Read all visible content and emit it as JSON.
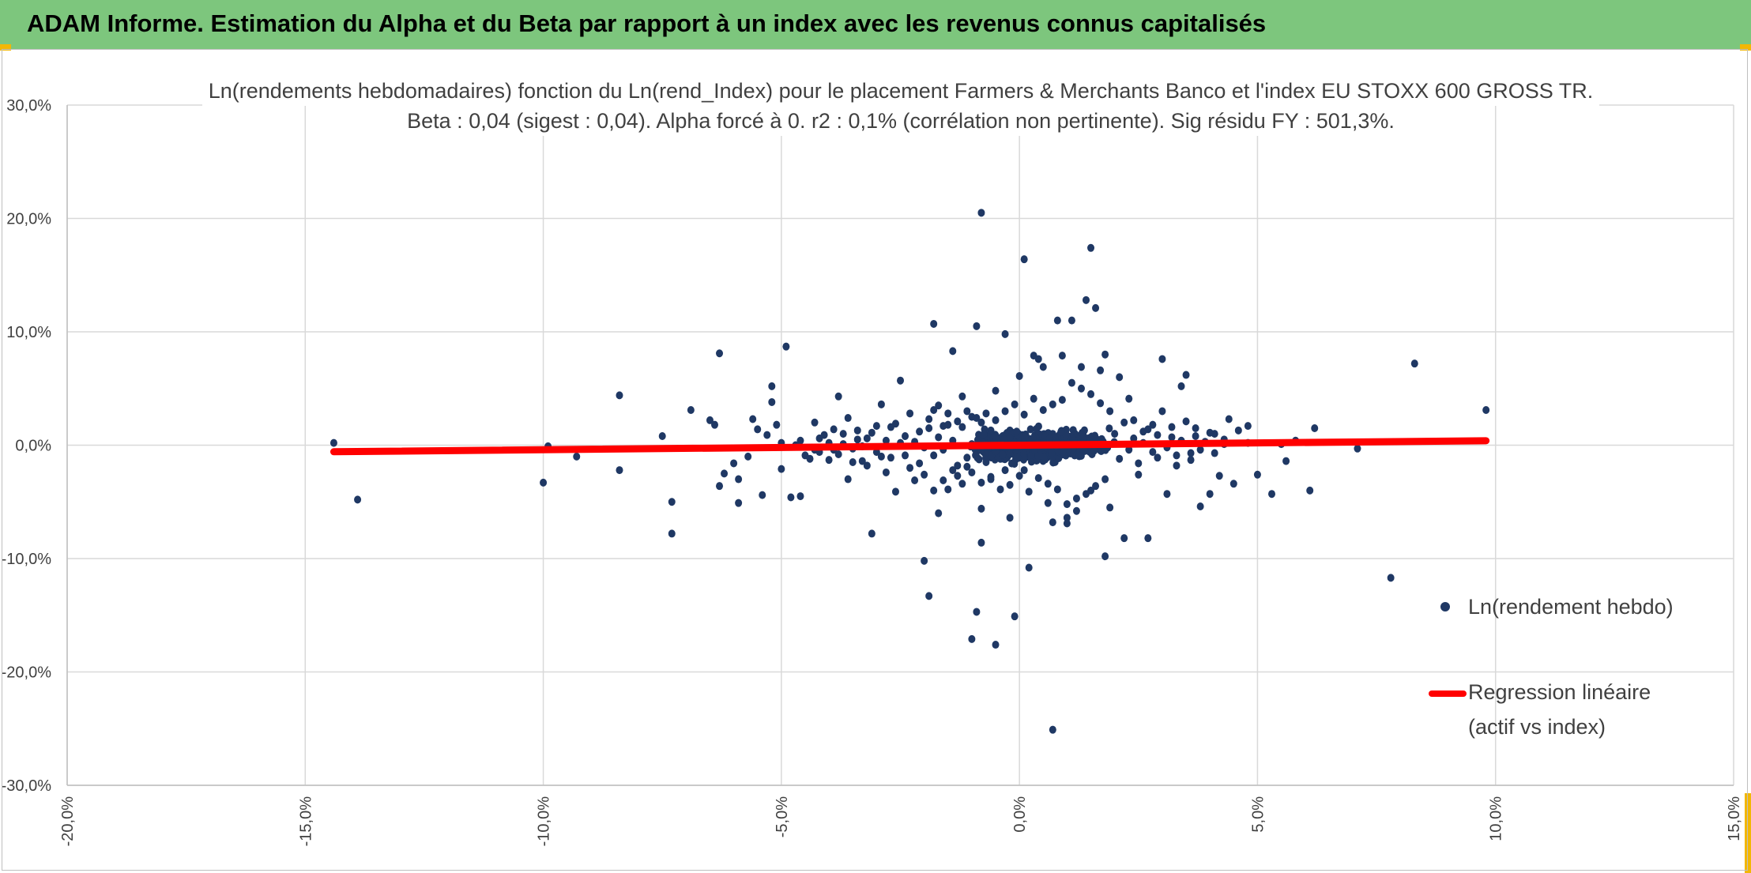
{
  "header": {
    "title": "ADAM Informe. Estimation du Alpha et du Beta par rapport à un index avec les revenus connus capitalisés"
  },
  "colors": {
    "banner": "#7dc67d",
    "points": "#1f3864",
    "regression": "#ff0000",
    "grid": "#d9d9d9",
    "corner_accent": "#f2b705"
  },
  "chart_data": {
    "type": "scatter",
    "title_line1": "Ln(rendements hebdomadaires) fonction du Ln(rend_Index) pour le placement Farmers & Merchants Banco et l'index EU STOXX 600 GROSS TR.",
    "title_line2": "Beta : 0,04 (sigest : 0,04).  Alpha forcé à 0. r2 : 0,1% (corrélation non pertinente). Sig résidu FY : 501,3%.",
    "xlim": [
      -0.2,
      0.15
    ],
    "ylim": [
      -0.3,
      0.3
    ],
    "x_ticks": [
      -0.2,
      -0.15,
      -0.1,
      -0.05,
      0.0,
      0.05,
      0.1,
      0.15
    ],
    "y_ticks": [
      -0.3,
      -0.2,
      -0.1,
      0.0,
      0.1,
      0.2,
      0.3
    ],
    "x_tick_labels": [
      "-20,0%",
      "-15,0%",
      "-10,0%",
      "-5,0%",
      "0,0%",
      "5,0%",
      "10,0%",
      "15,0%"
    ],
    "y_tick_labels": [
      "-30,0%",
      "-20,0%",
      "-10,0%",
      "0,0%",
      "10,0%",
      "20,0%",
      "30,0%"
    ],
    "grid": true,
    "legend_position": "right",
    "series": [
      {
        "name": "Ln(rendement hebdo)",
        "type": "scatter",
        "points": [
          [
            -0.144,
            0.002
          ],
          [
            -0.139,
            -0.048
          ],
          [
            -0.1,
            -0.033
          ],
          [
            -0.099,
            -0.001
          ],
          [
            -0.093,
            -0.01
          ],
          [
            -0.084,
            0.044
          ],
          [
            -0.084,
            -0.022
          ],
          [
            -0.075,
            0.008
          ],
          [
            -0.073,
            -0.05
          ],
          [
            -0.073,
            -0.078
          ],
          [
            -0.069,
            0.031
          ],
          [
            -0.065,
            0.022
          ],
          [
            -0.064,
            0.018
          ],
          [
            -0.063,
            0.081
          ],
          [
            -0.063,
            -0.036
          ],
          [
            -0.062,
            -0.025
          ],
          [
            -0.06,
            -0.016
          ],
          [
            -0.059,
            -0.03
          ],
          [
            -0.059,
            -0.051
          ],
          [
            -0.057,
            -0.01
          ],
          [
            -0.056,
            0.023
          ],
          [
            -0.055,
            0.014
          ],
          [
            -0.054,
            -0.044
          ],
          [
            -0.053,
            0.009
          ],
          [
            -0.052,
            0.052
          ],
          [
            -0.052,
            0.038
          ],
          [
            -0.051,
            0.018
          ],
          [
            -0.05,
            -0.021
          ],
          [
            -0.05,
            0.002
          ],
          [
            -0.048,
            -0.046
          ],
          [
            -0.047,
            0.0
          ],
          [
            -0.046,
            -0.045
          ],
          [
            -0.049,
            0.087
          ],
          [
            -0.046,
            0.004
          ],
          [
            -0.045,
            -0.009
          ],
          [
            -0.044,
            -0.012
          ],
          [
            -0.043,
            0.02
          ],
          [
            -0.042,
            -0.006
          ],
          [
            -0.041,
            0.009
          ],
          [
            -0.04,
            -0.013
          ],
          [
            -0.039,
            -0.004
          ],
          [
            -0.038,
            0.043
          ],
          [
            -0.037,
            0.01
          ],
          [
            -0.036,
            -0.03
          ],
          [
            -0.036,
            0.024
          ],
          [
            -0.035,
            -0.015
          ],
          [
            -0.034,
            0.005
          ],
          [
            -0.033,
            -0.001
          ],
          [
            -0.032,
            -0.018
          ],
          [
            -0.031,
            -0.078
          ],
          [
            -0.031,
            0.011
          ],
          [
            -0.03,
            -0.006
          ],
          [
            -0.029,
            0.036
          ],
          [
            -0.028,
            -0.024
          ],
          [
            -0.027,
            0.016
          ],
          [
            -0.026,
            -0.041
          ],
          [
            -0.025,
            0.002
          ],
          [
            -0.025,
            0.057
          ],
          [
            -0.024,
            -0.009
          ],
          [
            -0.023,
            0.028
          ],
          [
            -0.022,
            -0.031
          ],
          [
            -0.021,
            0.012
          ],
          [
            -0.02,
            -0.002
          ],
          [
            -0.02,
            -0.102
          ],
          [
            -0.019,
            -0.133
          ],
          [
            -0.018,
            0.107
          ],
          [
            -0.018,
            0.031
          ],
          [
            -0.017,
            -0.06
          ],
          [
            -0.016,
            0.017
          ],
          [
            -0.015,
            -0.039
          ],
          [
            -0.014,
            0.004
          ],
          [
            -0.014,
            0.083
          ],
          [
            -0.013,
            -0.018
          ],
          [
            -0.012,
            0.043
          ],
          [
            -0.011,
            -0.011
          ],
          [
            -0.01,
            0.025
          ],
          [
            -0.009,
            -0.147
          ],
          [
            -0.009,
            0.105
          ],
          [
            -0.008,
            -0.086
          ],
          [
            -0.008,
            -0.056
          ],
          [
            -0.007,
            0.009
          ],
          [
            -0.006,
            -0.03
          ],
          [
            -0.005,
            0.048
          ],
          [
            -0.004,
            -0.012
          ],
          [
            -0.003,
            0.098
          ],
          [
            -0.002,
            -0.064
          ],
          [
            -0.001,
            0.003
          ],
          [
            0.0,
            0.061
          ],
          [
            0.001,
            -0.022
          ],
          [
            0.002,
            -0.108
          ],
          [
            -0.002,
            0.013
          ],
          [
            -0.003,
            -0.022
          ],
          [
            -0.004,
            0.006
          ],
          [
            -0.006,
            0.013
          ],
          [
            -0.007,
            -0.015
          ],
          [
            -0.008,
            0.02
          ],
          [
            -0.009,
            -0.006
          ],
          [
            -0.01,
            0.001
          ],
          [
            -0.011,
            -0.019
          ],
          [
            -0.012,
            0.016
          ],
          [
            -0.013,
            -0.027
          ],
          [
            -0.015,
            0.018
          ],
          [
            -0.016,
            -0.004
          ],
          [
            -0.017,
            0.007
          ],
          [
            -0.018,
            -0.009
          ],
          [
            -0.019,
            0.015
          ],
          [
            -0.021,
            -0.016
          ],
          [
            -0.022,
            0.003
          ],
          [
            -0.023,
            -0.02
          ],
          [
            -0.024,
            0.008
          ],
          [
            -0.026,
            0.019
          ],
          [
            -0.027,
            -0.011
          ],
          [
            -0.028,
            0.004
          ],
          [
            -0.029,
            -0.01
          ],
          [
            -0.03,
            0.017
          ],
          [
            -0.032,
            0.006
          ],
          [
            -0.033,
            -0.014
          ],
          [
            -0.034,
            0.013
          ],
          [
            -0.035,
            -0.003
          ],
          [
            -0.037,
            0.001
          ],
          [
            -0.038,
            -0.008
          ],
          [
            -0.039,
            0.014
          ],
          [
            -0.04,
            0.002
          ],
          [
            -0.042,
            0.006
          ],
          [
            -0.043,
            -0.004
          ],
          [
            -0.008,
            0.205
          ],
          [
            -0.01,
            -0.171
          ],
          [
            -0.005,
            -0.176
          ],
          [
            0.001,
            0.164
          ],
          [
            -0.001,
            -0.151
          ],
          [
            0.007,
            -0.251
          ],
          [
            0.008,
            0.11
          ],
          [
            0.011,
            0.11
          ],
          [
            0.014,
            0.128
          ],
          [
            0.015,
            0.174
          ],
          [
            0.016,
            0.121
          ],
          [
            0.018,
            -0.098
          ],
          [
            0.018,
            0.08
          ],
          [
            0.017,
            0.066
          ],
          [
            0.013,
            0.069
          ],
          [
            0.009,
            0.079
          ],
          [
            0.005,
            0.069
          ],
          [
            0.003,
            0.079
          ],
          [
            0.004,
            0.076
          ],
          [
            0.006,
            -0.051
          ],
          [
            0.007,
            -0.068
          ],
          [
            0.01,
            -0.064
          ],
          [
            0.01,
            -0.069
          ],
          [
            0.012,
            -0.058
          ],
          [
            0.015,
            -0.04
          ],
          [
            0.019,
            -0.055
          ],
          [
            0.021,
            0.06
          ],
          [
            0.022,
            -0.082
          ],
          [
            0.023,
            0.041
          ],
          [
            0.024,
            0.022
          ],
          [
            0.025,
            -0.026
          ],
          [
            0.026,
            0.012
          ],
          [
            0.027,
            -0.082
          ],
          [
            0.028,
            0.018
          ],
          [
            0.029,
            -0.011
          ],
          [
            0.03,
            0.076
          ],
          [
            0.03,
            0.03
          ],
          [
            0.031,
            -0.043
          ],
          [
            0.032,
            0.007
          ],
          [
            0.033,
            -0.018
          ],
          [
            0.034,
            0.052
          ],
          [
            0.035,
            0.021
          ],
          [
            0.035,
            0.062
          ],
          [
            0.036,
            -0.007
          ],
          [
            0.037,
            0.015
          ],
          [
            0.038,
            -0.054
          ],
          [
            0.039,
            0.003
          ],
          [
            0.04,
            -0.043
          ],
          [
            0.041,
            0.01
          ],
          [
            0.042,
            -0.027
          ],
          [
            0.043,
            0.005
          ],
          [
            0.044,
            0.023
          ],
          [
            0.045,
            -0.034
          ],
          [
            0.046,
            0.013
          ],
          [
            0.048,
            0.002
          ],
          [
            0.048,
            0.017
          ],
          [
            0.05,
            -0.026
          ],
          [
            0.053,
            -0.043
          ],
          [
            0.055,
            0.001
          ],
          [
            0.056,
            -0.014
          ],
          [
            0.058,
            0.004
          ],
          [
            0.061,
            -0.04
          ],
          [
            0.062,
            0.015
          ],
          [
            0.071,
            -0.003
          ],
          [
            0.078,
            -0.117
          ],
          [
            0.083,
            0.072
          ],
          [
            0.098,
            0.031
          ],
          [
            0.02,
            0.01
          ],
          [
            0.021,
            -0.012
          ],
          [
            0.022,
            0.02
          ],
          [
            0.023,
            -0.004
          ],
          [
            0.024,
            0.006
          ],
          [
            0.025,
            -0.016
          ],
          [
            0.026,
            0.002
          ],
          [
            0.027,
            0.014
          ],
          [
            0.028,
            -0.006
          ],
          [
            0.029,
            0.009
          ],
          [
            0.031,
            -0.002
          ],
          [
            0.032,
            0.016
          ],
          [
            0.033,
            -0.009
          ],
          [
            0.034,
            0.004
          ],
          [
            0.036,
            -0.013
          ],
          [
            0.037,
            0.008
          ],
          [
            0.038,
            -0.004
          ],
          [
            0.04,
            0.011
          ],
          [
            0.041,
            -0.007
          ],
          [
            0.043,
            0.001
          ],
          [
            0.019,
            0.03
          ],
          [
            0.018,
            -0.03
          ],
          [
            0.017,
            0.037
          ],
          [
            0.016,
            -0.036
          ],
          [
            0.015,
            0.045
          ],
          [
            0.014,
            -0.043
          ],
          [
            0.013,
            0.05
          ],
          [
            0.012,
            -0.047
          ],
          [
            0.011,
            0.055
          ],
          [
            0.01,
            -0.052
          ],
          [
            0.009,
            0.04
          ],
          [
            0.008,
            -0.039
          ],
          [
            0.007,
            0.036
          ],
          [
            0.006,
            -0.034
          ],
          [
            0.005,
            0.031
          ],
          [
            0.004,
            -0.029
          ],
          [
            0.003,
            0.041
          ],
          [
            0.002,
            -0.041
          ],
          [
            0.001,
            0.027
          ],
          [
            0.0,
            -0.027
          ],
          [
            -0.001,
            0.036
          ],
          [
            -0.002,
            -0.035
          ],
          [
            -0.003,
            0.03
          ],
          [
            -0.004,
            -0.039
          ],
          [
            -0.005,
            0.022
          ],
          [
            -0.006,
            -0.028
          ],
          [
            -0.007,
            0.028
          ],
          [
            -0.008,
            -0.033
          ],
          [
            -0.009,
            0.024
          ],
          [
            -0.01,
            -0.024
          ],
          [
            -0.011,
            0.03
          ],
          [
            -0.012,
            -0.034
          ],
          [
            -0.013,
            0.021
          ],
          [
            -0.014,
            -0.022
          ],
          [
            -0.015,
            0.028
          ],
          [
            -0.016,
            -0.031
          ],
          [
            -0.017,
            0.035
          ],
          [
            -0.018,
            -0.04
          ],
          [
            -0.019,
            0.023
          ],
          [
            -0.02,
            -0.026
          ]
        ]
      },
      {
        "name": "Regression linéaire (actif vs index)",
        "type": "line",
        "beta": 0.04,
        "x_range": [
          -0.144,
          0.098
        ]
      }
    ]
  },
  "legend": {
    "scatter_label": "Ln(rendement hebdo)",
    "line_label_1": "Regression linéaire",
    "line_label_2": "(actif vs index)"
  }
}
